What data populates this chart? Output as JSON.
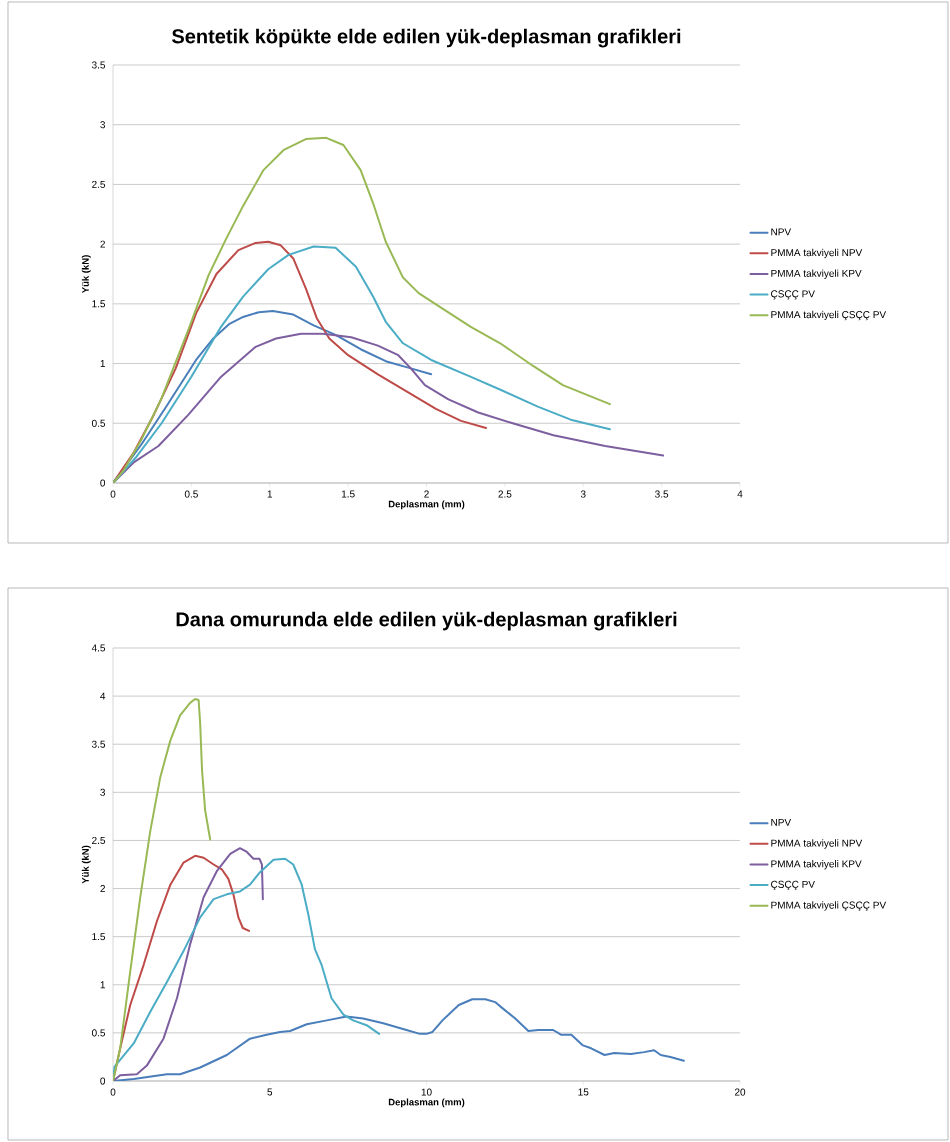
{
  "chart_data": [
    {
      "type": "line",
      "title": "Sentetik köpükte elde edilen yük-deplasman grafikleri",
      "xlabel": "Deplasman (mm)",
      "ylabel": "Yük (kN)",
      "xlim": [
        0,
        4
      ],
      "ylim": [
        0,
        3.5
      ],
      "xticks": [
        0,
        0.5,
        1,
        1.5,
        2,
        2.5,
        3,
        3.5,
        4
      ],
      "yticks": [
        0,
        0.5,
        1,
        1.5,
        2,
        2.5,
        3,
        3.5
      ],
      "grid": "y",
      "legend": "right",
      "line_style": "solid",
      "marker": "none",
      "series": [
        {
          "name": "NPV",
          "color": "#4a7ebb",
          "x": [
            0,
            0.18,
            0.34,
            0.53,
            0.64,
            0.74,
            0.83,
            0.93,
            1.02,
            1.15,
            1.28,
            1.42,
            1.58,
            1.74,
            1.9,
            2.03
          ],
          "values": [
            0,
            0.32,
            0.64,
            1.03,
            1.21,
            1.33,
            1.39,
            1.43,
            1.44,
            1.41,
            1.32,
            1.24,
            1.12,
            1.02,
            0.96,
            0.91
          ]
        },
        {
          "name": "PMMA takviyeli NPV",
          "color": "#be4b48",
          "x": [
            0,
            0.13,
            0.26,
            0.4,
            0.53,
            0.66,
            0.8,
            0.91,
            0.99,
            1.07,
            1.15,
            1.23,
            1.3,
            1.38,
            1.5,
            1.69,
            1.87,
            2.06,
            2.22,
            2.38
          ],
          "values": [
            0,
            0.25,
            0.57,
            0.96,
            1.42,
            1.75,
            1.95,
            2.01,
            2.02,
            1.99,
            1.88,
            1.63,
            1.38,
            1.21,
            1.07,
            0.91,
            0.77,
            0.62,
            0.52,
            0.46
          ]
        },
        {
          "name": "PMMA takviyeli KPV",
          "color": "#7d5fa0",
          "x": [
            0,
            0.13,
            0.29,
            0.48,
            0.69,
            0.91,
            1.04,
            1.2,
            1.34,
            1.52,
            1.69,
            1.82,
            1.9,
            1.99,
            2.14,
            2.33,
            2.55,
            2.81,
            3.14,
            3.51
          ],
          "values": [
            0,
            0.17,
            0.31,
            0.57,
            0.89,
            1.14,
            1.21,
            1.25,
            1.25,
            1.22,
            1.15,
            1.07,
            0.96,
            0.82,
            0.7,
            0.59,
            0.5,
            0.4,
            0.31,
            0.23
          ]
        },
        {
          "name": "ÇSÇÇ PV",
          "color": "#4bacc6",
          "x": [
            0,
            0.15,
            0.31,
            0.5,
            0.69,
            0.83,
            0.99,
            1.12,
            1.28,
            1.42,
            1.55,
            1.66,
            1.74,
            1.85,
            2.03,
            2.28,
            2.49,
            2.71,
            2.92,
            3.17
          ],
          "values": [
            0,
            0.22,
            0.5,
            0.89,
            1.31,
            1.56,
            1.79,
            1.91,
            1.98,
            1.97,
            1.81,
            1.56,
            1.35,
            1.17,
            1.03,
            0.89,
            0.77,
            0.64,
            0.53,
            0.45
          ]
        },
        {
          "name": "PMMA takviyeli ÇSÇÇ PV",
          "color": "#98b954",
          "x": [
            0,
            0.07,
            0.18,
            0.31,
            0.48,
            0.61,
            0.72,
            0.83,
            0.96,
            1.09,
            1.23,
            1.36,
            1.47,
            1.58,
            1.66,
            1.74,
            1.85,
            1.95,
            2.09,
            2.28,
            2.47,
            2.68,
            2.87,
            3.0,
            3.17
          ],
          "values": [
            0,
            0.11,
            0.36,
            0.71,
            1.28,
            1.74,
            2.04,
            2.32,
            2.62,
            2.79,
            2.88,
            2.89,
            2.83,
            2.62,
            2.34,
            2.02,
            1.72,
            1.59,
            1.47,
            1.31,
            1.17,
            0.98,
            0.82,
            0.75,
            0.66
          ]
        }
      ]
    },
    {
      "type": "line",
      "title": "Dana omurunda elde edilen yük-deplasman grafikleri",
      "xlabel": "Deplasman (mm)",
      "ylabel": "Yük (kN)",
      "xlim": [
        0,
        20
      ],
      "ylim": [
        0,
        4.5
      ],
      "xticks": [
        0,
        5,
        10,
        15,
        20
      ],
      "yticks": [
        0,
        0.5,
        1,
        1.5,
        2,
        2.5,
        3,
        3.5,
        4,
        4.5
      ],
      "grid": "y",
      "legend": "right",
      "line_style": "solid",
      "marker": "none",
      "series": [
        {
          "name": "NPV",
          "color": "#4a7ebb",
          "x": [
            0,
            0.66,
            1.72,
            2.14,
            2.78,
            3.63,
            4.37,
            4.9,
            5.33,
            5.65,
            6.18,
            6.82,
            7.45,
            7.98,
            8.62,
            9.36,
            9.79,
            10.0,
            10.19,
            10.51,
            11.03,
            11.46,
            11.88,
            12.19,
            12.41,
            12.83,
            13.25,
            13.57,
            14.04,
            14.3,
            14.62,
            14.99,
            15.25,
            15.68,
            15.99,
            16.52,
            16.94,
            17.26,
            17.47,
            17.78,
            18.21
          ],
          "values": [
            0,
            0.02,
            0.07,
            0.07,
            0.14,
            0.27,
            0.44,
            0.48,
            0.51,
            0.52,
            0.59,
            0.63,
            0.67,
            0.65,
            0.6,
            0.53,
            0.49,
            0.49,
            0.51,
            0.63,
            0.79,
            0.85,
            0.85,
            0.82,
            0.76,
            0.65,
            0.52,
            0.53,
            0.53,
            0.48,
            0.48,
            0.37,
            0.34,
            0.27,
            0.29,
            0.28,
            0.3,
            0.32,
            0.27,
            0.25,
            0.21
          ]
        },
        {
          "name": "PMMA takviyeli NPV",
          "color": "#be4b48",
          "x": [
            0,
            0.23,
            0.55,
            0.98,
            1.4,
            1.83,
            2.25,
            2.62,
            2.89,
            3.21,
            3.47,
            3.68,
            3.84,
            4.0,
            4.14,
            4.34
          ],
          "values": [
            0,
            0.34,
            0.79,
            1.21,
            1.66,
            2.04,
            2.27,
            2.34,
            2.32,
            2.25,
            2.2,
            2.1,
            1.94,
            1.7,
            1.59,
            1.56
          ]
        },
        {
          "name": "PMMA takviyeli KPV",
          "color": "#7d5fa0",
          "x": [
            0,
            0.23,
            0.76,
            1.08,
            1.61,
            2.04,
            2.46,
            2.89,
            3.31,
            3.74,
            4.05,
            4.27,
            4.48,
            4.67,
            4.75,
            4.78
          ],
          "values": [
            0,
            0.06,
            0.07,
            0.16,
            0.44,
            0.86,
            1.42,
            1.91,
            2.18,
            2.36,
            2.42,
            2.38,
            2.31,
            2.31,
            2.25,
            1.89
          ]
        },
        {
          "name": "ÇSÇÇ PV",
          "color": "#4bacc6",
          "x": [
            0,
            0.05,
            0.66,
            1.19,
            1.72,
            2.25,
            2.78,
            3.21,
            3.63,
            4.05,
            4.37,
            4.69,
            5.12,
            5.49,
            5.75,
            6.02,
            6.23,
            6.44,
            6.65,
            6.97,
            7.35,
            7.66,
            8.09,
            8.49
          ],
          "values": [
            0.02,
            0.15,
            0.39,
            0.72,
            1.03,
            1.35,
            1.7,
            1.89,
            1.94,
            1.97,
            2.04,
            2.17,
            2.3,
            2.31,
            2.25,
            2.04,
            1.73,
            1.37,
            1.21,
            0.86,
            0.69,
            0.63,
            0.58,
            0.49
          ]
        },
        {
          "name": "PMMA takviyeli ÇSÇÇ PV",
          "color": "#98b954",
          "x": [
            0,
            0.23,
            0.55,
            0.87,
            1.19,
            1.51,
            1.83,
            2.14,
            2.46,
            2.62,
            2.73,
            2.78,
            2.84,
            2.94,
            3.1
          ],
          "values": [
            0,
            0.34,
            1.14,
            1.91,
            2.6,
            3.16,
            3.54,
            3.8,
            3.93,
            3.97,
            3.96,
            3.72,
            3.23,
            2.81,
            2.51
          ]
        }
      ]
    }
  ]
}
